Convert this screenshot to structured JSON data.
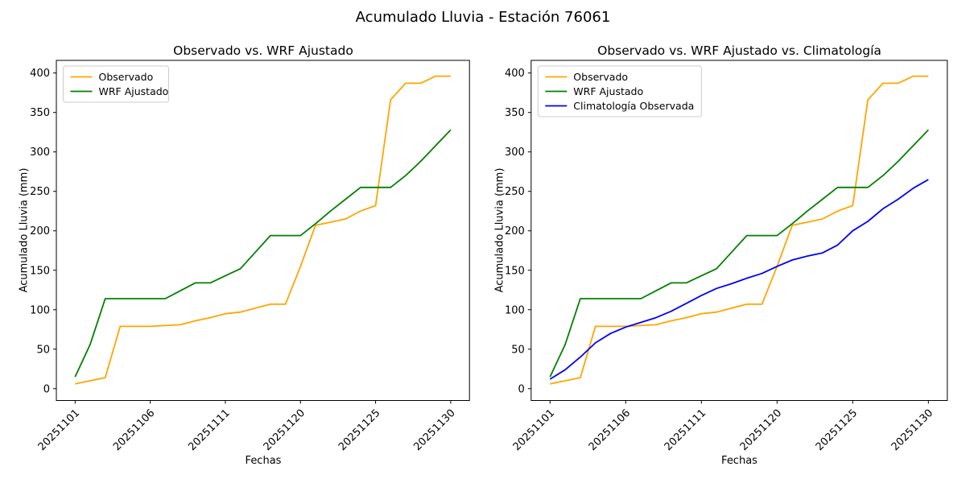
{
  "chart_data": {
    "type": "line",
    "suptitle": "Acumulado Lluvia - Estación 76061",
    "xlabel": "Fechas",
    "ylabel": "Acumulado Lluvia (mm)",
    "grid": false,
    "legend_position": "upper left",
    "ylim": [
      -15,
      416
    ],
    "y_ticks": [
      0,
      50,
      100,
      150,
      200,
      250,
      300,
      350,
      400
    ],
    "x": [
      "20251101",
      "20251102",
      "20251103",
      "20251104",
      "20251105",
      "20251106",
      "20251107",
      "20251108",
      "20251109",
      "20251110",
      "20251111",
      "20251112",
      "20251114",
      "20251116",
      "20251118",
      "20251120",
      "20251121",
      "20251122",
      "20251123",
      "20251124",
      "20251125",
      "20251126",
      "20251127",
      "20251128",
      "20251129",
      "20251130"
    ],
    "x_tick_indices": [
      0,
      5,
      10,
      15,
      20,
      25
    ],
    "x_tick_labels": [
      "20251101",
      "20251106",
      "20251111",
      "20251120",
      "20251125",
      "20251130"
    ],
    "series": [
      {
        "name": "Observado",
        "color": "#FFA500",
        "values": [
          6,
          10,
          14,
          79,
          79,
          79,
          80,
          81,
          86,
          90,
          95,
          97,
          102,
          107,
          107,
          155,
          207,
          211,
          215,
          225,
          232,
          366,
          387,
          387,
          396,
          396
        ]
      },
      {
        "name": "WRF Ajustado",
        "color": "#008000",
        "values": [
          15,
          56,
          114,
          114,
          114,
          114,
          114,
          124,
          134,
          134,
          143,
          152,
          173,
          194,
          194,
          194,
          209,
          225,
          240,
          255,
          255,
          255,
          270,
          288,
          308,
          328
        ]
      },
      {
        "name": "Climatología Observada",
        "color": "#0000FF",
        "values": [
          12,
          24,
          40,
          58,
          70,
          78,
          84,
          90,
          98,
          108,
          118,
          127,
          133,
          140,
          146,
          155,
          163,
          168,
          172,
          182,
          200,
          212,
          228,
          240,
          254,
          265
        ]
      }
    ],
    "subplots": [
      {
        "title": "Observado vs. WRF Ajustado",
        "series": [
          0,
          1
        ]
      },
      {
        "title": "Observado vs. WRF Ajustado vs. Climatología",
        "series": [
          0,
          1,
          2
        ]
      }
    ]
  }
}
